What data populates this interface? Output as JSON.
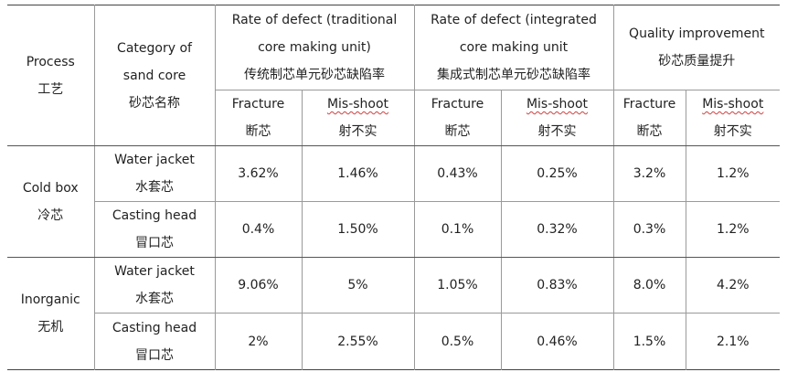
{
  "header": {
    "process": {
      "en": "Process",
      "zh": "工艺"
    },
    "category": {
      "line1": "Category of",
      "line2": "sand core",
      "zh": "砂芯名称"
    },
    "traditional": {
      "line1": "Rate of defect (traditional",
      "line2": "core making unit)",
      "zh": "传统制芯单元砂芯缺陷率"
    },
    "integrated": {
      "line1": "Rate of defect (integrated",
      "line2": "core making unit",
      "zh": "集成式制芯单元砂芯缺陷率"
    },
    "improvement": {
      "line1": "Quality improvement",
      "zh": "砂芯质量提升"
    },
    "fracture": {
      "en": "Fracture",
      "zh": "断芯"
    },
    "misshoot": {
      "en": "Mis-shoot",
      "zh": "射不实"
    }
  },
  "rows": [
    {
      "process_en": "Cold box",
      "process_zh": "冷芯",
      "core_en": "Water jacket",
      "core_zh": "水套芯",
      "values": [
        "3.62%",
        "1.46%",
        "0.43%",
        "0.25%",
        "3.2%",
        "1.2%"
      ]
    },
    {
      "core_en": "Casting head",
      "core_zh": "冒口芯",
      "values": [
        "0.4%",
        "1.50%",
        "0.1%",
        "0.32%",
        "0.3%",
        "1.2%"
      ]
    },
    {
      "process_en": "Inorganic",
      "process_zh": "无机",
      "core_en": "Water jacket",
      "core_zh": "水套芯",
      "values": [
        "9.06%",
        "5%",
        "1.05%",
        "0.83%",
        "8.0%",
        "4.2%"
      ]
    },
    {
      "core_en": "Casting head",
      "core_zh": "冒口芯",
      "values": [
        "2%",
        "2.55%",
        "0.5%",
        "0.46%",
        "1.5%",
        "2.1%"
      ]
    }
  ]
}
